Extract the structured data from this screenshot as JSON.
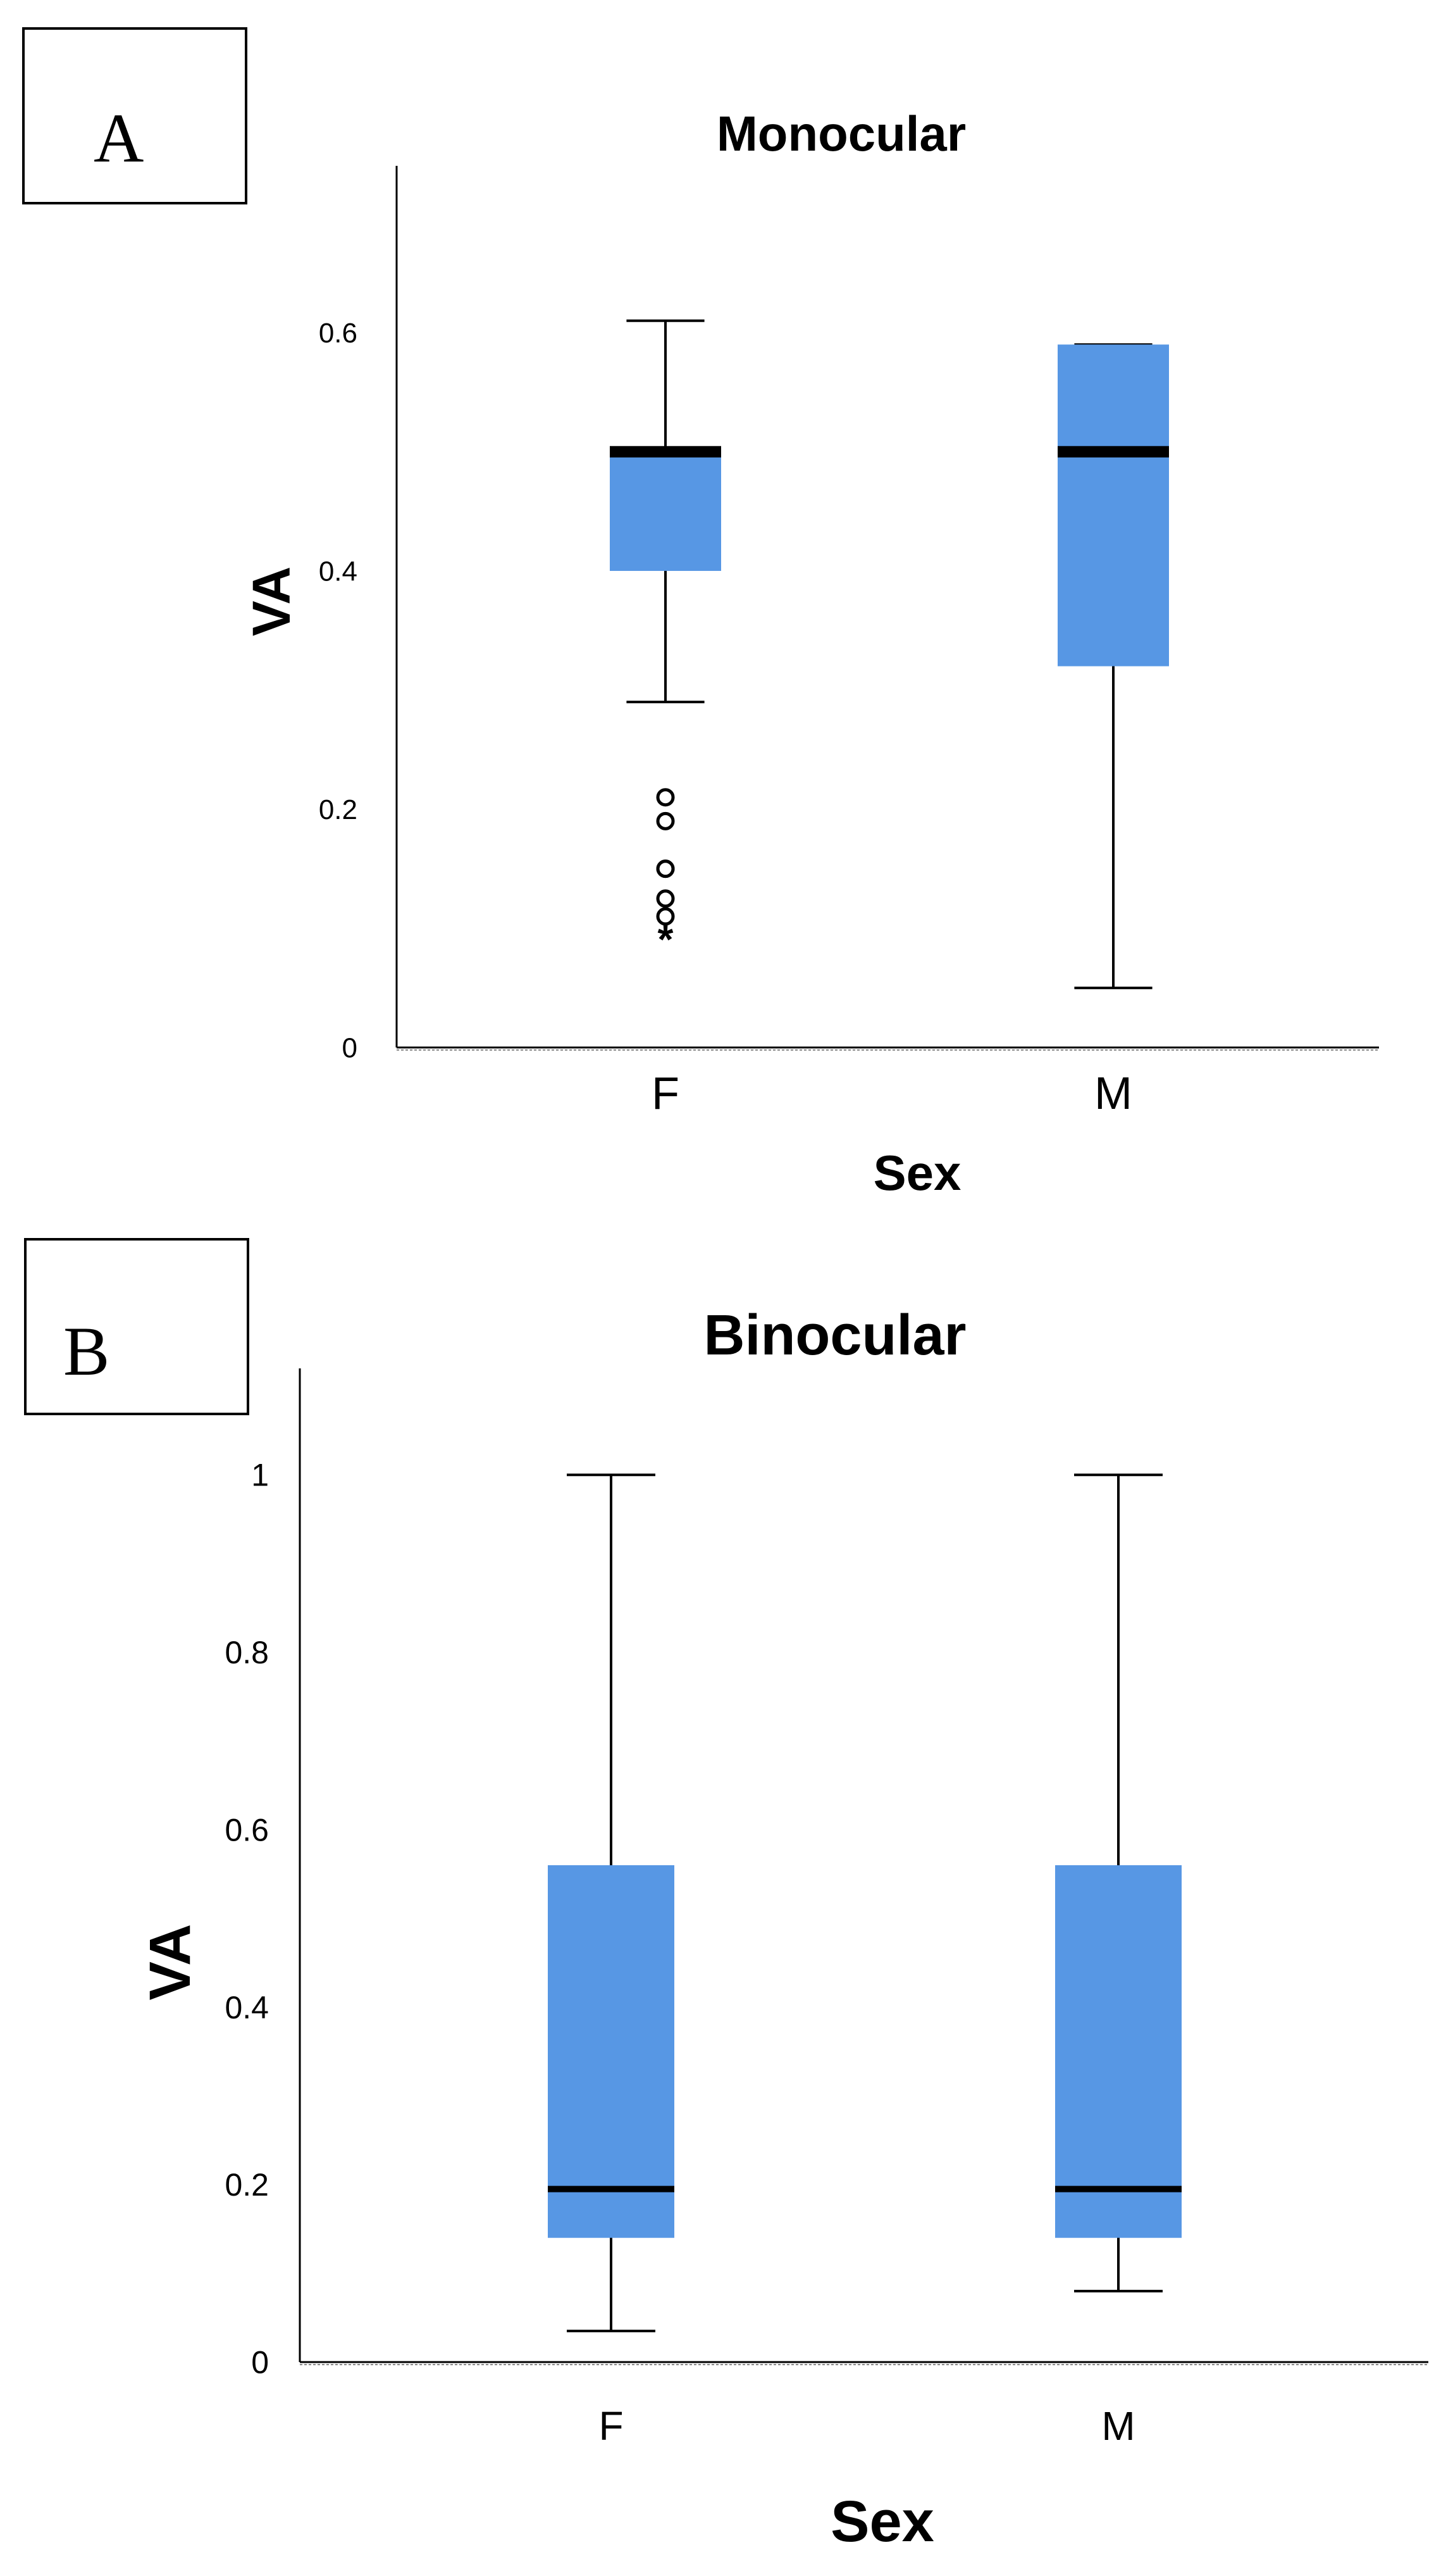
{
  "chart_data": [
    {
      "panel_label": "A",
      "type": "box",
      "title": "Monocular",
      "xlabel": "Sex",
      "ylabel": "VA",
      "ylim": [
        0,
        0.74
      ],
      "yticks": [
        "0",
        "0.2",
        "0.4",
        "0.6"
      ],
      "ytick_values": [
        0,
        0.2,
        0.4,
        0.6
      ],
      "grid": false,
      "box_color": "#5797e4",
      "categories": [
        "F",
        "M"
      ],
      "boxes": [
        {
          "category": "F",
          "whisker_low": 0.29,
          "q1": 0.4,
          "median": 0.5,
          "q3": 0.5,
          "whisker_high": 0.61
        },
        {
          "category": "M",
          "whisker_low": 0.05,
          "q1": 0.32,
          "median": 0.5,
          "q3": 0.59,
          "whisker_high": 0.59
        }
      ],
      "outliers": [
        {
          "category": "F",
          "value": 0.21,
          "marker": "circle"
        },
        {
          "category": "F",
          "value": 0.19,
          "marker": "circle"
        },
        {
          "category": "F",
          "value": 0.15,
          "marker": "circle"
        },
        {
          "category": "F",
          "value": 0.15,
          "marker": "circle"
        },
        {
          "category": "F",
          "value": 0.125,
          "marker": "circle"
        },
        {
          "category": "F",
          "value": 0.11,
          "marker": "circle"
        },
        {
          "category": "F",
          "value": 0.095,
          "marker": "star"
        }
      ]
    },
    {
      "panel_label": "B",
      "type": "box",
      "title": "Binocular",
      "xlabel": "Sex",
      "ylabel": "VA",
      "ylim": [
        -0.02,
        1.12
      ],
      "yticks": [
        "0",
        "0.2",
        "0.4",
        "0.6",
        "0.8",
        "1"
      ],
      "ytick_values": [
        0,
        0.2,
        0.4,
        0.6,
        0.8,
        1
      ],
      "grid": false,
      "box_color": "#5797e4",
      "categories": [
        "F",
        "M"
      ],
      "boxes": [
        {
          "category": "F",
          "whisker_low": 0.035,
          "q1": 0.14,
          "median": 0.195,
          "q3": 0.56,
          "whisker_high": 1.0
        },
        {
          "category": "M",
          "whisker_low": 0.08,
          "q1": 0.14,
          "median": 0.195,
          "q3": 0.56,
          "whisker_high": 1.0
        }
      ],
      "outliers": []
    }
  ]
}
